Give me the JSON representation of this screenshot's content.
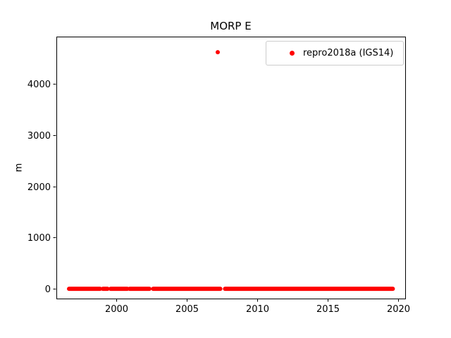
{
  "chart_data": {
    "type": "scatter",
    "title": "MORP E",
    "xlabel": "",
    "ylabel": "m",
    "xlim": [
      1995.75,
      2020.5
    ],
    "ylim": [
      -190,
      4925
    ],
    "xticks": [
      2000,
      2005,
      2010,
      2015,
      2020
    ],
    "yticks": [
      0,
      1000,
      2000,
      3000,
      4000
    ],
    "grid": false,
    "legend": {
      "position": "upper right",
      "entries": [
        "repro2018a (IGS14)"
      ]
    },
    "series": [
      {
        "name": "repro2018a (IGS14)",
        "color": "#ff0000",
        "marker": "dot",
        "marker_size_px": 6,
        "baseline_value": 0,
        "baseline_segments_years": [
          [
            1996.65,
            1998.85
          ],
          [
            1999.05,
            1999.38
          ],
          [
            1999.6,
            2000.78
          ],
          [
            2000.95,
            2002.35
          ],
          [
            2002.62,
            2007.38
          ],
          [
            2007.72,
            2019.62
          ]
        ],
        "outlier_points": [
          [
            2007.2,
            4620
          ]
        ]
      }
    ],
    "colors": {
      "axis": "#000000",
      "text": "#000000",
      "legend_border": "#cccccc",
      "background": "#ffffff"
    }
  }
}
